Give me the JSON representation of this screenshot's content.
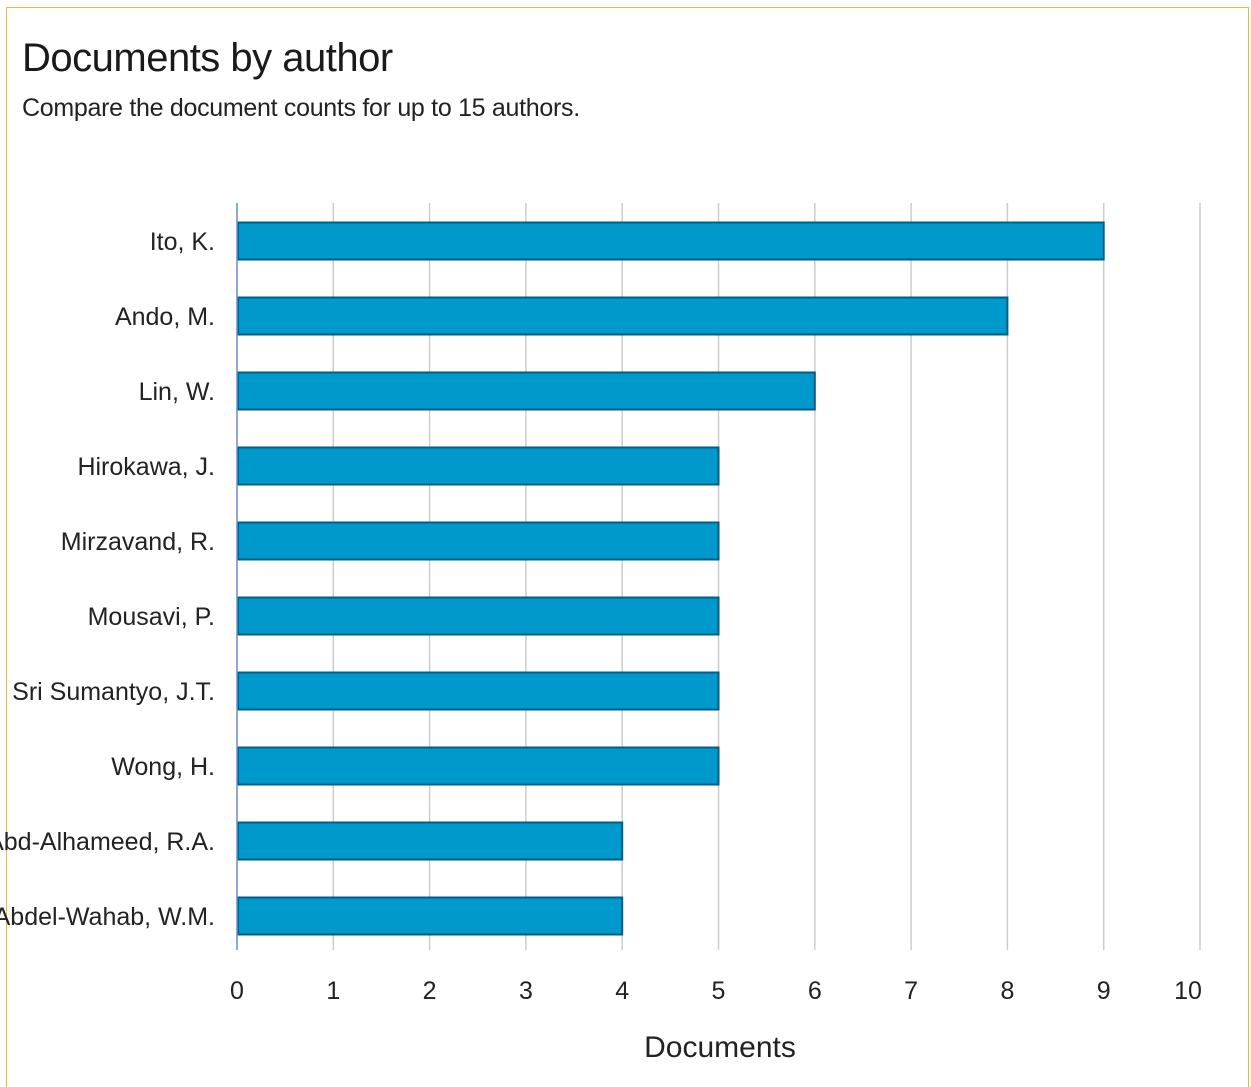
{
  "panel": {
    "title": "Documents by author",
    "subtitle": "Compare the document counts for up to 15 authors."
  },
  "colors": {
    "bar_fill": "#0099cc",
    "bar_stroke": "#005f87",
    "grid": "#cccccc",
    "axis": "#6a8fc7",
    "panel_border": "#e8b83a"
  },
  "chart_data": {
    "type": "bar",
    "orientation": "horizontal",
    "categories": [
      "Ito, K.",
      "Ando, M.",
      "Lin, W.",
      "Hirokawa, J.",
      "Mirzavand, R.",
      "Mousavi, P.",
      "Sri Sumantyo, J.T.",
      "Wong, H.",
      "Abd-Alhameed, R.A.",
      "Abdel-Wahab, W.M."
    ],
    "values": [
      9,
      8,
      6,
      5,
      5,
      5,
      5,
      5,
      4,
      4
    ],
    "xlabel": "Documents",
    "ylabel": "",
    "xlim": [
      0,
      10
    ],
    "xticks": [
      "0",
      "1",
      "2",
      "3",
      "4",
      "5",
      "6",
      "7",
      "8",
      "9",
      "10"
    ],
    "grid": "vertical"
  }
}
